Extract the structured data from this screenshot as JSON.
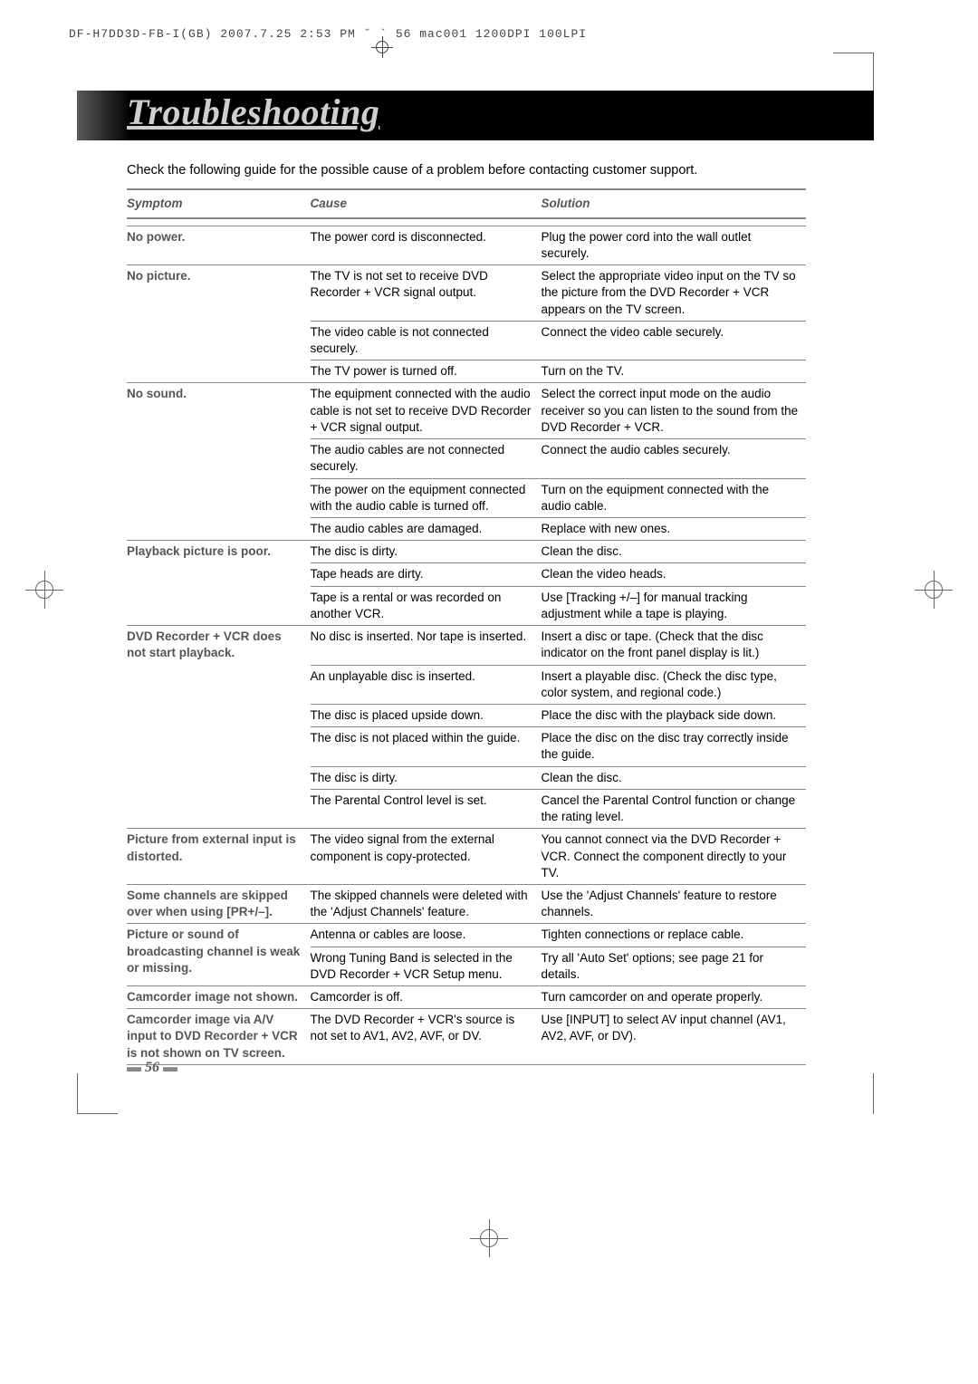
{
  "header_line": "DF-H7DD3D-FB-I(GB)  2007.7.25 2:53 PM  ˘ ` 56   mac001  1200DPI 100LPI",
  "title": "Troubleshooting",
  "intro": "Check the following guide for the possible cause of a problem before contacting customer support.",
  "columns": {
    "symptom": "Symptom",
    "cause": "Cause",
    "solution": "Solution"
  },
  "rows": [
    {
      "sym": "No power.",
      "cau": "The power cord is disconnected.",
      "sol": "Plug the power cord into the wall outlet securely."
    },
    {
      "sym": "No picture.",
      "cau": "The TV is not set to receive DVD Recorder + VCR signal output.",
      "sol": "Select the appropriate video input on the TV so the picture from the DVD Recorder + VCR appears on the TV screen."
    },
    {
      "sym": "",
      "cau": "The video cable is not connected securely.",
      "sol": "Connect the video cable securely."
    },
    {
      "sym": "",
      "cau": "The TV power is turned off.",
      "sol": "Turn on the TV."
    },
    {
      "sym": "No sound.",
      "cau": "The equipment connected with the audio cable is not set to receive DVD Recorder + VCR signal output.",
      "sol": "Select the correct input mode on the audio receiver so you can listen to the sound from the DVD Recorder + VCR."
    },
    {
      "sym": "",
      "cau": "The audio cables are not connected securely.",
      "sol": "Connect the audio cables securely."
    },
    {
      "sym": "",
      "cau": "The power on the equipment connected with the audio cable is turned off.",
      "sol": "Turn on the equipment connected with the audio cable."
    },
    {
      "sym": "",
      "cau": "The audio cables are damaged.",
      "sol": "Replace with new ones."
    },
    {
      "sym": "Playback picture is poor.",
      "cau": "The disc is dirty.",
      "sol": "Clean the disc."
    },
    {
      "sym": "",
      "cau": "Tape heads are dirty.",
      "sol": "Clean the video heads."
    },
    {
      "sym": "",
      "cau": "Tape is a rental or was recorded on another VCR.",
      "sol": "Use [Tracking +/–] for manual tracking adjustment while a tape is playing."
    },
    {
      "sym": "DVD Recorder + VCR does not start playback.",
      "cau": "No disc is inserted. Nor tape is inserted.",
      "sol": "Insert a disc or tape. (Check that the disc indicator on the front panel display is lit.)"
    },
    {
      "sym": "",
      "cau": "An unplayable disc is inserted.",
      "sol": "Insert a playable disc. (Check the disc type, color system, and regional code.)"
    },
    {
      "sym": "",
      "cau": "The disc is placed upside down.",
      "sol": "Place the disc with the playback side down."
    },
    {
      "sym": "",
      "cau": "The disc is not placed within the guide.",
      "sol": "Place the disc on the disc tray correctly inside the guide."
    },
    {
      "sym": "",
      "cau": "The disc is dirty.",
      "sol": "Clean the disc."
    },
    {
      "sym": "",
      "cau": "The Parental Control level is set.",
      "sol": "Cancel the Parental Control function or change the rating level."
    },
    {
      "sym": "Picture from external input is distorted.",
      "cau": "The video signal from the external component is copy-protected.",
      "sol": "You cannot connect via the DVD Recorder + VCR. Connect the component directly to your TV."
    },
    {
      "sym": "Some channels are skipped over when using [PR+/–].",
      "cau": "The skipped channels were deleted with the 'Adjust Channels' feature.",
      "sol": "Use the 'Adjust Channels' feature to restore channels."
    },
    {
      "sym": "Picture or sound of broadcasting channel is weak or missing.",
      "cau": "Antenna or cables are loose.",
      "sol": "Tighten connections or replace cable."
    },
    {
      "sym": "",
      "cau": "Wrong Tuning Band is selected in the DVD Recorder + VCR Setup menu.",
      "sol": "Try all 'Auto Set' options; see page 21 for details."
    },
    {
      "sym": "Camcorder image not shown.",
      "cau": "Camcorder is off.",
      "sol": "Turn camcorder on and operate properly."
    },
    {
      "sym": "Camcorder image via A/V input to DVD Recorder + VCR is not shown on TV screen.",
      "cau": "The DVD Recorder + VCR's source is not set to AV1, AV2, AVF, or DV.",
      "sol": "Use [INPUT] to select AV input channel (AV1, AV2, AVF, or DV)."
    }
  ],
  "merge_groups": [
    [
      0
    ],
    [
      1,
      2,
      3
    ],
    [
      4,
      5,
      6,
      7
    ],
    [
      8,
      9,
      10
    ],
    [
      11,
      12,
      13,
      14,
      15,
      16
    ],
    [
      17
    ],
    [
      18
    ],
    [
      19,
      20
    ],
    [
      21
    ],
    [
      22
    ]
  ],
  "page_number": "56"
}
